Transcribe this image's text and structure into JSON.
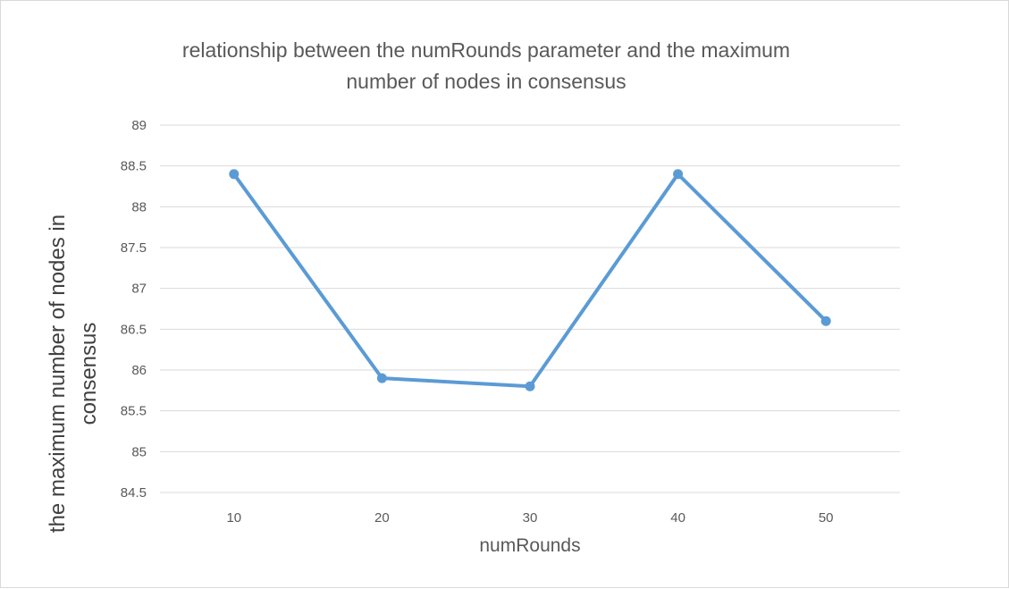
{
  "chart_data": {
    "type": "line",
    "title_lines": [
      "relationship between the numRounds parameter and the maximum",
      "number of nodes in consensus"
    ],
    "xlabel": "numRounds",
    "ylabel_lines": [
      "the maximum number of nodes in",
      "consensus"
    ],
    "categories": [
      "10",
      "20",
      "30",
      "40",
      "50"
    ],
    "series": [
      {
        "values": [
          88.4,
          85.9,
          85.8,
          88.4,
          86.6
        ]
      }
    ],
    "ylim": [
      84.5,
      89
    ],
    "y_ticks": [
      "84.5",
      "85",
      "85.5",
      "86",
      "86.5",
      "87",
      "87.5",
      "88",
      "88.5",
      "89"
    ],
    "grid": true,
    "legend": "none",
    "line_color": "#5B9BD5",
    "grid_color": "#d9d9d9"
  }
}
